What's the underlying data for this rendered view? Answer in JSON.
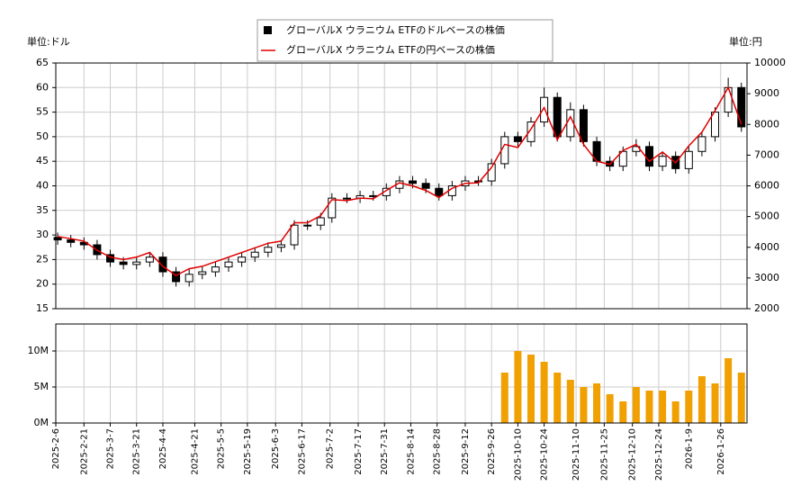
{
  "chart_data": [
    {
      "type": "candlestick",
      "name": "グローバルX ウラニウム ETFのドルベースの株価",
      "color": "#000000",
      "up_color": "#ffffff",
      "down_color": "#000000",
      "y_label": "単位:ドル",
      "y2_label": "単位:円",
      "x": [
        "2025-02-07",
        "2025-02-14",
        "2025-02-21",
        "2025-02-28",
        "2025-03-07",
        "2025-03-14",
        "2025-03-21",
        "2025-03-28",
        "2025-04-04",
        "2025-04-11",
        "2025-04-18",
        "2025-04-25",
        "2025-05-02",
        "2025-05-09",
        "2025-05-16",
        "2025-05-23",
        "2025-05-30",
        "2025-06-06",
        "2025-06-13",
        "2025-06-20",
        "2025-06-27",
        "2025-07-03",
        "2025-07-11",
        "2025-07-18",
        "2025-07-25",
        "2025-08-01",
        "2025-08-08",
        "2025-08-15",
        "2025-08-22",
        "2025-08-29",
        "2025-09-05",
        "2025-09-12",
        "2025-09-19",
        "2025-09-26",
        "2025-10-03",
        "2025-10-10",
        "2025-10-17",
        "2025-10-24",
        "2025-10-31",
        "2025-11-07",
        "2025-11-14",
        "2025-11-21",
        "2025-11-28",
        "2025-12-05",
        "2025-12-12",
        "2025-12-19",
        "2025-12-26",
        "2026-01-02",
        "2026-01-09",
        "2026-01-16",
        "2026-01-23",
        "2026-01-30",
        "2026-02-06"
      ],
      "open": [
        29.5,
        29,
        28.5,
        28,
        26,
        24.5,
        24,
        24.5,
        25.5,
        22.5,
        20.5,
        22,
        22.5,
        23.5,
        24.5,
        25.5,
        26.5,
        27.5,
        28,
        32,
        32,
        33.5,
        37.5,
        37.5,
        38,
        38,
        39.5,
        41,
        40.5,
        39.5,
        38,
        40,
        41,
        41,
        44.5,
        50,
        49,
        53,
        58,
        50,
        55.5,
        49,
        45,
        44,
        47,
        48,
        44,
        46,
        43.5,
        47,
        50,
        55,
        60
      ],
      "high": [
        30.5,
        30,
        29.5,
        29,
        27,
        25.5,
        25.5,
        26.5,
        26.5,
        23.5,
        23,
        23.5,
        24.5,
        25.5,
        26.5,
        27.5,
        28.5,
        29,
        33,
        33,
        34.5,
        38.5,
        38.5,
        39,
        39,
        40.5,
        42,
        42,
        41.5,
        40.5,
        41,
        42,
        42,
        45.5,
        51,
        51,
        54,
        60,
        59,
        57,
        56.5,
        50,
        46,
        48,
        49.5,
        49,
        47,
        47,
        48,
        51,
        56,
        62,
        61
      ],
      "low": [
        28,
        27.5,
        27,
        25,
        23.5,
        23,
        23,
        23.5,
        21.5,
        19.5,
        19.5,
        21,
        21.5,
        22.5,
        23.5,
        24.5,
        25.5,
        26.5,
        27,
        31,
        31,
        32.5,
        36.5,
        36.5,
        37,
        37,
        38.5,
        39.5,
        38.5,
        37,
        37,
        39,
        40,
        40,
        43.5,
        48,
        48,
        52,
        49,
        49,
        48,
        44,
        43,
        43,
        46,
        43,
        43,
        42.5,
        42.5,
        46,
        49,
        54,
        51
      ],
      "close": [
        29,
        28.5,
        28,
        26,
        24.5,
        24,
        24.5,
        25.5,
        22.5,
        20.5,
        22,
        22.5,
        23.5,
        24.5,
        25.5,
        26.5,
        27.5,
        28,
        32,
        32,
        33.5,
        37.5,
        37.5,
        38,
        38,
        39.5,
        41,
        40.5,
        39.5,
        38,
        40,
        41,
        41,
        44.5,
        50,
        49,
        53,
        58,
        50,
        55.5,
        49,
        45,
        44,
        47,
        48,
        44,
        46,
        43.5,
        47,
        50,
        55,
        60,
        52
      ],
      "series": [
        {
          "name": "グローバルX ウラニウム ETFの円ベースの株価",
          "color": "#e00000",
          "axis": "y2",
          "values": [
            4350,
            4280,
            4200,
            3900,
            3680,
            3600,
            3680,
            3830,
            3380,
            3080,
            3300,
            3380,
            3530,
            3680,
            3830,
            3980,
            4130,
            4200,
            4800,
            4800,
            5030,
            5550,
            5520,
            5600,
            5580,
            5850,
            6100,
            6000,
            5850,
            5620,
            5920,
            6080,
            6100,
            6600,
            7350,
            7250,
            7850,
            8550,
            7500,
            8250,
            7350,
            6800,
            6700,
            7150,
            7350,
            6800,
            7100,
            6750,
            7300,
            7750,
            8450,
            9200,
            8000
          ]
        }
      ],
      "xlim": [
        "2025-02-06",
        "2026-02-09"
      ],
      "ylim": [
        15,
        65
      ],
      "yticks": [
        15,
        20,
        25,
        30,
        35,
        40,
        45,
        50,
        55,
        60,
        65
      ],
      "y2lim": [
        2000,
        10000
      ],
      "y2ticks": [
        2000,
        3000,
        4000,
        5000,
        6000,
        7000,
        8000,
        9000,
        10000
      ],
      "grid": true
    },
    {
      "type": "bar",
      "color": "#f0a000",
      "values": [
        null,
        null,
        null,
        null,
        null,
        null,
        null,
        null,
        null,
        null,
        null,
        null,
        null,
        null,
        null,
        null,
        null,
        null,
        null,
        null,
        null,
        null,
        null,
        null,
        null,
        null,
        null,
        null,
        null,
        null,
        null,
        null,
        null,
        null,
        7000000,
        10000000,
        9500000,
        8500000,
        7000000,
        6000000,
        5000000,
        5500000,
        4000000,
        3000000,
        5000000,
        4500000,
        4500000,
        3000000,
        4500000,
        6500000,
        5500000,
        9000000,
        7000000
      ],
      "xlim": [
        "2025-02-06",
        "2026-02-09"
      ],
      "xticks": [
        {
          "value": "2025-02-06",
          "label": "2025-2-6"
        },
        {
          "value": "2025-02-21",
          "label": "2025-2-21"
        },
        {
          "value": "2025-03-07",
          "label": "2025-3-7"
        },
        {
          "value": "2025-03-21",
          "label": "2025-3-21"
        },
        {
          "value": "2025-04-04",
          "label": "2025-4-4"
        },
        {
          "value": "2025-04-21",
          "label": "2025-4-21"
        },
        {
          "value": "2025-05-05",
          "label": "2025-5-5"
        },
        {
          "value": "2025-05-19",
          "label": "2025-5-19"
        },
        {
          "value": "2025-06-03",
          "label": "2025-6-3"
        },
        {
          "value": "2025-06-17",
          "label": "2025-6-17"
        },
        {
          "value": "2025-07-02",
          "label": "2025-7-2"
        },
        {
          "value": "2025-07-17",
          "label": "2025-7-17"
        },
        {
          "value": "2025-07-31",
          "label": "2025-7-31"
        },
        {
          "value": "2025-08-14",
          "label": "2025-8-14"
        },
        {
          "value": "2025-08-28",
          "label": "2025-8-28"
        },
        {
          "value": "2025-09-12",
          "label": "2025-9-12"
        },
        {
          "value": "2025-09-26",
          "label": "2025-9-26"
        },
        {
          "value": "2025-10-10",
          "label": "2025-10-10"
        },
        {
          "value": "2025-10-24",
          "label": "2025-10-24"
        },
        {
          "value": "2025-11-10",
          "label": "2025-11-10"
        },
        {
          "value": "2025-11-25",
          "label": "2025-11-25"
        },
        {
          "value": "2025-12-10",
          "label": "2025-12-10"
        },
        {
          "value": "2025-12-24",
          "label": "2025-12-24"
        },
        {
          "value": "2026-01-09",
          "label": "2026-1-9"
        },
        {
          "value": "2026-01-26",
          "label": "2026-1-26"
        }
      ],
      "ylim": [
        0,
        13750000
      ],
      "yticks": [
        {
          "value": 0,
          "label": "0M"
        },
        {
          "value": 5000000,
          "label": "5M"
        },
        {
          "value": 10000000,
          "label": "10M"
        }
      ],
      "grid": true
    }
  ]
}
